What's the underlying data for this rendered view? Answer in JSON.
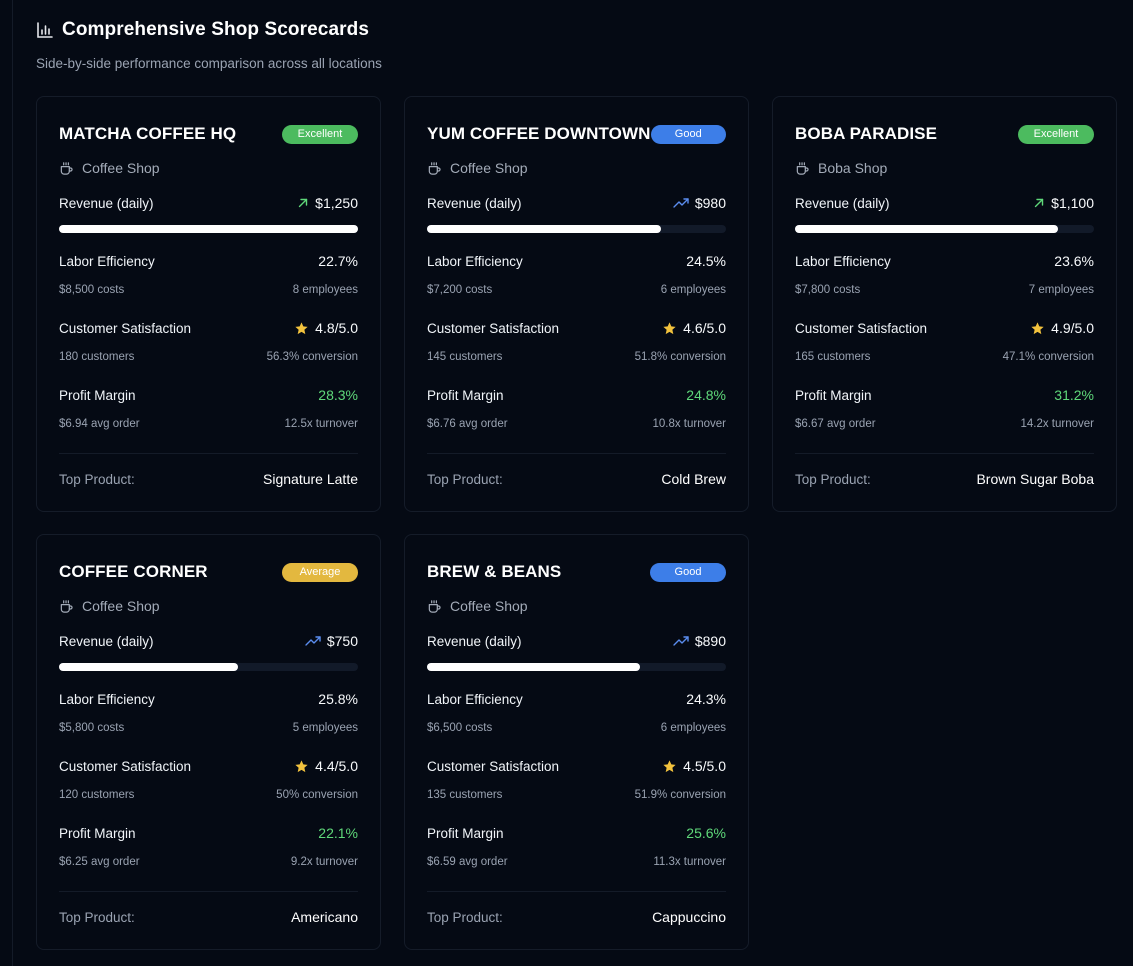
{
  "header": {
    "title": "Comprehensive Shop Scorecards",
    "subtitle": "Side-by-side performance comparison across all locations"
  },
  "labels": {
    "revenue": "Revenue (daily)",
    "labor": "Labor Efficiency",
    "satisfaction": "Customer Satisfaction",
    "profit": "Profit Margin",
    "top_product": "Top Product:"
  },
  "colors": {
    "excellent": "#4cbb5f",
    "good": "#3d7ee8",
    "average": "#e3b83f",
    "trend_green": "#5fd87a",
    "trend_blue": "#5b8def",
    "star": "#f2c23d"
  },
  "shops": [
    {
      "name": "MATCHA COFFEE HQ",
      "badge": "Excellent",
      "badge_type": "excellent",
      "type": "Coffee Shop",
      "revenue": "$1,250",
      "revenue_fraction": 1.0,
      "trend": "up-arrow-icon",
      "labor": "22.7%",
      "costs": "$8,500 costs",
      "employees": "8 employees",
      "rating": "4.8/5.0",
      "customers": "180 customers",
      "conversion": "56.3% conversion",
      "profit": "28.3%",
      "avg_order": "$6.94 avg order",
      "turnover": "12.5x turnover",
      "top_product": "Signature Latte"
    },
    {
      "name": "YUM COFFEE DOWNTOWN",
      "badge": "Good",
      "badge_type": "good",
      "type": "Coffee Shop",
      "revenue": "$980",
      "revenue_fraction": 0.784,
      "trend": "trending-up-icon",
      "labor": "24.5%",
      "costs": "$7,200 costs",
      "employees": "6 employees",
      "rating": "4.6/5.0",
      "customers": "145 customers",
      "conversion": "51.8% conversion",
      "profit": "24.8%",
      "avg_order": "$6.76 avg order",
      "turnover": "10.8x turnover",
      "top_product": "Cold Brew"
    },
    {
      "name": "BOBA PARADISE",
      "badge": "Excellent",
      "badge_type": "excellent",
      "type": "Boba Shop",
      "revenue": "$1,100",
      "revenue_fraction": 0.88,
      "trend": "up-arrow-icon",
      "labor": "23.6%",
      "costs": "$7,800 costs",
      "employees": "7 employees",
      "rating": "4.9/5.0",
      "customers": "165 customers",
      "conversion": "47.1% conversion",
      "profit": "31.2%",
      "avg_order": "$6.67 avg order",
      "turnover": "14.2x turnover",
      "top_product": "Brown Sugar Boba"
    },
    {
      "name": "COFFEE CORNER",
      "badge": "Average",
      "badge_type": "average",
      "type": "Coffee Shop",
      "revenue": "$750",
      "revenue_fraction": 0.6,
      "trend": "trending-up-icon",
      "labor": "25.8%",
      "costs": "$5,800 costs",
      "employees": "5 employees",
      "rating": "4.4/5.0",
      "customers": "120 customers",
      "conversion": "50% conversion",
      "profit": "22.1%",
      "avg_order": "$6.25 avg order",
      "turnover": "9.2x turnover",
      "top_product": "Americano"
    },
    {
      "name": "BREW & BEANS",
      "badge": "Good",
      "badge_type": "good",
      "type": "Coffee Shop",
      "revenue": "$890",
      "revenue_fraction": 0.712,
      "trend": "trending-up-icon",
      "labor": "24.3%",
      "costs": "$6,500 costs",
      "employees": "6 employees",
      "rating": "4.5/5.0",
      "customers": "135 customers",
      "conversion": "51.9% conversion",
      "profit": "25.6%",
      "avg_order": "$6.59 avg order",
      "turnover": "11.3x turnover",
      "top_product": "Cappuccino"
    }
  ]
}
